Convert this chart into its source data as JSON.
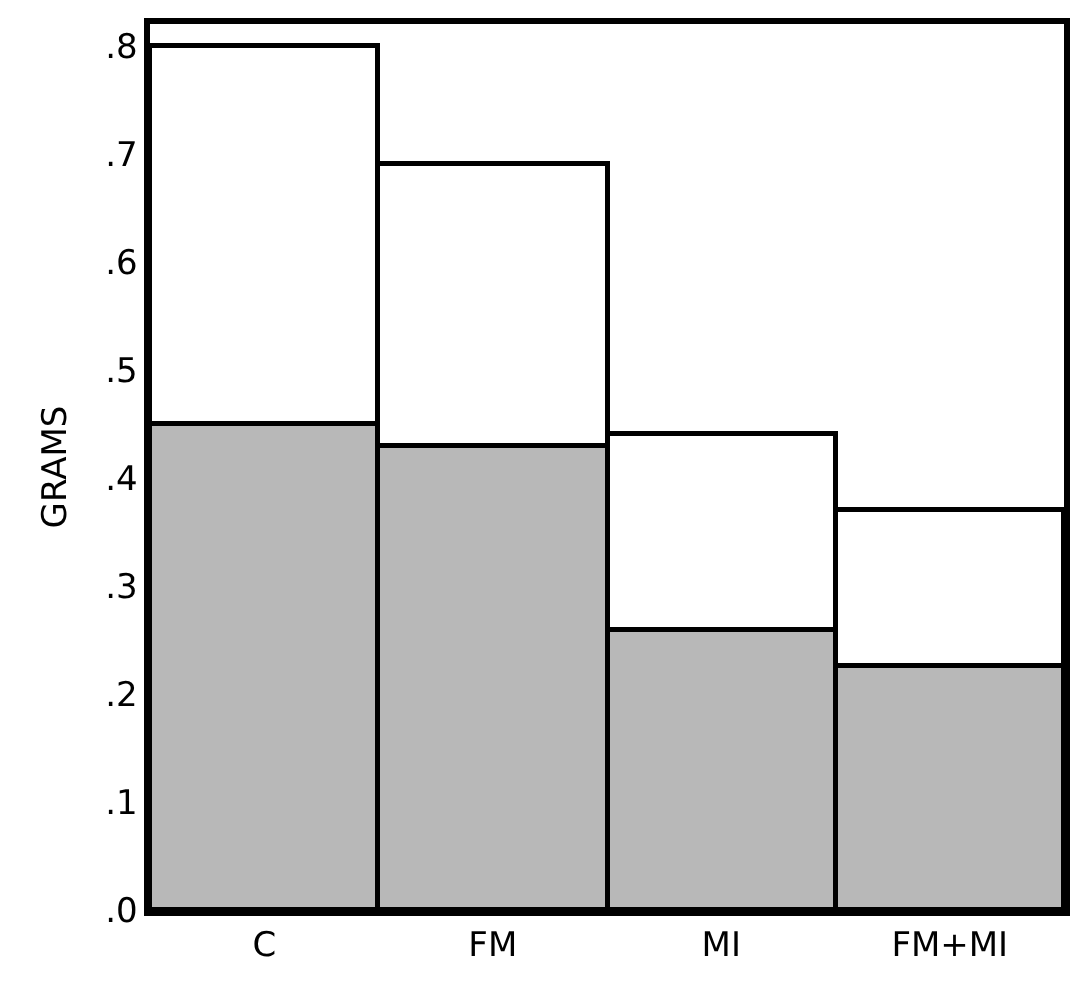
{
  "chart_data": {
    "type": "bar",
    "stacked": true,
    "ylabel": "GRAMS",
    "categories": [
      "C",
      "FM",
      "MI",
      "FM+MI"
    ],
    "series": [
      {
        "color": "#b8b8b8",
        "values": [
          0.45,
          0.43,
          0.26,
          0.225
        ]
      },
      {
        "color": "#ffffff",
        "values": [
          0.35,
          0.26,
          0.18,
          0.145
        ]
      }
    ],
    "ylim": [
      0,
      0.82
    ],
    "yticks": [
      {
        "value": 0,
        "label": ".0"
      },
      {
        "value": 0.1,
        "label": ".1"
      },
      {
        "value": 0.2,
        "label": ".2"
      },
      {
        "value": 0.3,
        "label": ".3"
      },
      {
        "value": 0.4,
        "label": ".4"
      },
      {
        "value": 0.5,
        "label": ".5"
      },
      {
        "value": 0.6,
        "label": ".6"
      },
      {
        "value": 0.7,
        "label": ".7"
      },
      {
        "value": 0.8,
        "label": ".8"
      }
    ]
  }
}
